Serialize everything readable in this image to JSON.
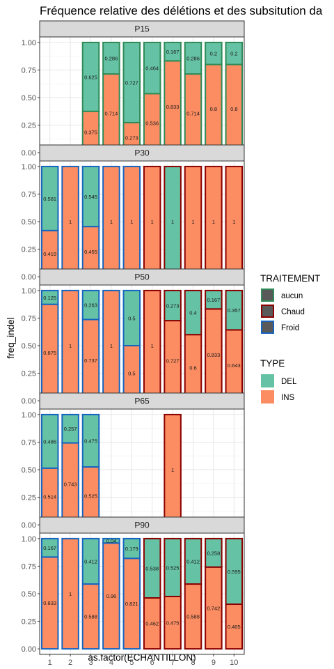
{
  "chart_data": {
    "type": "bar",
    "title": "Fréquence relative des délétions et des subsitution da",
    "xlabel": "as.factor(ECHANTILLON)",
    "ylabel": "freq_indel",
    "ylim": [
      0,
      1
    ],
    "y_ticks": [
      "0.00",
      "0.25",
      "0.50",
      "0.75",
      "1.00"
    ],
    "categories": [
      "1",
      "2",
      "3",
      "4",
      "5",
      "6",
      "7",
      "8",
      "9",
      "10"
    ],
    "grid": true,
    "colors": {
      "DEL": "#66c2a5",
      "INS": "#fc8d62",
      "aucun": "#2e8b57",
      "Chaud": "#8b0000",
      "Froid": "#1565c0"
    },
    "legend": {
      "position": "right",
      "traitement_title": "TRAITEMENT",
      "traitement": [
        {
          "key": "aucun",
          "label": "aucun"
        },
        {
          "key": "Chaud",
          "label": "Chaud"
        },
        {
          "key": "Froid",
          "label": "Froid"
        }
      ],
      "type_title": "TYPE",
      "type": [
        {
          "key": "DEL",
          "label": "DEL"
        },
        {
          "key": "INS",
          "label": "INS"
        }
      ]
    },
    "panels": [
      {
        "label": "P15",
        "bars": [
          {
            "x": "3",
            "traitement": "aucun",
            "ins": 0.375,
            "del": 0.625,
            "ins_label": "0.375",
            "del_label": "0.625"
          },
          {
            "x": "4",
            "traitement": "aucun",
            "ins": 0.714,
            "del": 0.286,
            "ins_label": "0.714",
            "del_label": "0.286"
          },
          {
            "x": "5",
            "traitement": "aucun",
            "ins": 0.273,
            "del": 0.727,
            "ins_label": "0.273",
            "del_label": "0.727"
          },
          {
            "x": "6",
            "traitement": "aucun",
            "ins": 0.536,
            "del": 0.464,
            "ins_label": "0.536",
            "del_label": "0.464"
          },
          {
            "x": "7",
            "traitement": "aucun",
            "ins": 0.833,
            "del": 0.167,
            "ins_label": "0.833",
            "del_label": "0.167"
          },
          {
            "x": "8",
            "traitement": "aucun",
            "ins": 0.714,
            "del": 0.286,
            "ins_label": "0.714",
            "del_label": "0.286"
          },
          {
            "x": "9",
            "traitement": "aucun",
            "ins": 0.8,
            "del": 0.2,
            "ins_label": "0.8",
            "del_label": "0.2"
          },
          {
            "x": "10",
            "traitement": "aucun",
            "ins": 0.8,
            "del": 0.2,
            "ins_label": "0.8",
            "del_label": "0.2"
          }
        ]
      },
      {
        "label": "P30",
        "bars": [
          {
            "x": "1",
            "traitement": "Froid",
            "ins": 0.419,
            "del": 0.581,
            "ins_label": "0.419",
            "del_label": "0.581"
          },
          {
            "x": "2",
            "traitement": "Froid",
            "ins": 1,
            "del": 0,
            "ins_label": "1",
            "del_label": ""
          },
          {
            "x": "3",
            "traitement": "Froid",
            "ins": 0.455,
            "del": 0.545,
            "ins_label": "0.455",
            "del_label": "0.545"
          },
          {
            "x": "4",
            "traitement": "Froid",
            "ins": 1,
            "del": 0,
            "ins_label": "1",
            "del_label": ""
          },
          {
            "x": "5",
            "traitement": "Froid",
            "ins": 1,
            "del": 0,
            "ins_label": "1",
            "del_label": ""
          },
          {
            "x": "6",
            "traitement": "Chaud",
            "ins": 1,
            "del": 0,
            "ins_label": "1",
            "del_label": ""
          },
          {
            "x": "7",
            "traitement": "Chaud",
            "ins": 0,
            "del": 1,
            "ins_label": "",
            "del_label": "1"
          },
          {
            "x": "8",
            "traitement": "Chaud",
            "ins": 1,
            "del": 0,
            "ins_label": "1",
            "del_label": ""
          },
          {
            "x": "9",
            "traitement": "Chaud",
            "ins": 1,
            "del": 0,
            "ins_label": "1",
            "del_label": ""
          },
          {
            "x": "10",
            "traitement": "Chaud",
            "ins": 1,
            "del": 0,
            "ins_label": "1",
            "del_label": ""
          }
        ]
      },
      {
        "label": "P50",
        "bars": [
          {
            "x": "1",
            "traitement": "Froid",
            "ins": 0.875,
            "del": 0.125,
            "ins_label": "0.875",
            "del_label": "0.125"
          },
          {
            "x": "2",
            "traitement": "Froid",
            "ins": 1,
            "del": 0,
            "ins_label": "1",
            "del_label": ""
          },
          {
            "x": "3",
            "traitement": "Froid",
            "ins": 0.737,
            "del": 0.263,
            "ins_label": "0.737",
            "del_label": "0.263"
          },
          {
            "x": "4",
            "traitement": "Froid",
            "ins": 1,
            "del": 0,
            "ins_label": "1",
            "del_label": ""
          },
          {
            "x": "5",
            "traitement": "Froid",
            "ins": 0.5,
            "del": 0.5,
            "ins_label": "0.5",
            "del_label": "0.5"
          },
          {
            "x": "6",
            "traitement": "Chaud",
            "ins": 1,
            "del": 0,
            "ins_label": "1",
            "del_label": ""
          },
          {
            "x": "7",
            "traitement": "Chaud",
            "ins": 0.727,
            "del": 0.273,
            "ins_label": "0.727",
            "del_label": "0.273"
          },
          {
            "x": "8",
            "traitement": "Chaud",
            "ins": 0.6,
            "del": 0.4,
            "ins_label": "0.6",
            "del_label": "0.4"
          },
          {
            "x": "9",
            "traitement": "Chaud",
            "ins": 0.833,
            "del": 0.167,
            "ins_label": "0.833",
            "del_label": "0.167"
          },
          {
            "x": "10",
            "traitement": "Chaud",
            "ins": 0.643,
            "del": 0.357,
            "ins_label": "0.643",
            "del_label": "0.357"
          }
        ]
      },
      {
        "label": "P65",
        "bars": [
          {
            "x": "1",
            "traitement": "Froid",
            "ins": 0.514,
            "del": 0.486,
            "ins_label": "0.514",
            "del_label": "0.486"
          },
          {
            "x": "2",
            "traitement": "Froid",
            "ins": 0.743,
            "del": 0.257,
            "ins_label": "0.743",
            "del_label": "0.257"
          },
          {
            "x": "3",
            "traitement": "Froid",
            "ins": 0.525,
            "del": 0.475,
            "ins_label": "0.525",
            "del_label": "0.475"
          },
          {
            "x": "7",
            "traitement": "Chaud",
            "ins": 1,
            "del": 0,
            "ins_label": "1",
            "del_label": ""
          }
        ]
      },
      {
        "label": "P90",
        "bars": [
          {
            "x": "1",
            "traitement": "Froid",
            "ins": 0.833,
            "del": 0.167,
            "ins_label": "0.833",
            "del_label": "0.167"
          },
          {
            "x": "2",
            "traitement": "Froid",
            "ins": 1,
            "del": 0,
            "ins_label": "1",
            "del_label": ""
          },
          {
            "x": "3",
            "traitement": "Froid",
            "ins": 0.588,
            "del": 0.412,
            "ins_label": "0.588",
            "del_label": "0.412"
          },
          {
            "x": "4",
            "traitement": "Froid",
            "ins": 0.96,
            "del": 0.04,
            "ins_label": "0.96",
            "del_label": "0.04"
          },
          {
            "x": "5",
            "traitement": "Froid",
            "ins": 0.821,
            "del": 0.179,
            "ins_label": "0.821",
            "del_label": "0.179"
          },
          {
            "x": "6",
            "traitement": "Chaud",
            "ins": 0.462,
            "del": 0.538,
            "ins_label": "0.462",
            "del_label": "0.538"
          },
          {
            "x": "7",
            "traitement": "Chaud",
            "ins": 0.475,
            "del": 0.525,
            "ins_label": "0.475",
            "del_label": "0.525"
          },
          {
            "x": "8",
            "traitement": "Chaud",
            "ins": 0.588,
            "del": 0.412,
            "ins_label": "0.588",
            "del_label": "0.412"
          },
          {
            "x": "9",
            "traitement": "Chaud",
            "ins": 0.742,
            "del": 0.258,
            "ins_label": "0.742",
            "del_label": "0.258"
          },
          {
            "x": "10",
            "traitement": "Chaud",
            "ins": 0.405,
            "del": 0.595,
            "ins_label": "0.405",
            "del_label": "0.595"
          }
        ]
      }
    ]
  }
}
